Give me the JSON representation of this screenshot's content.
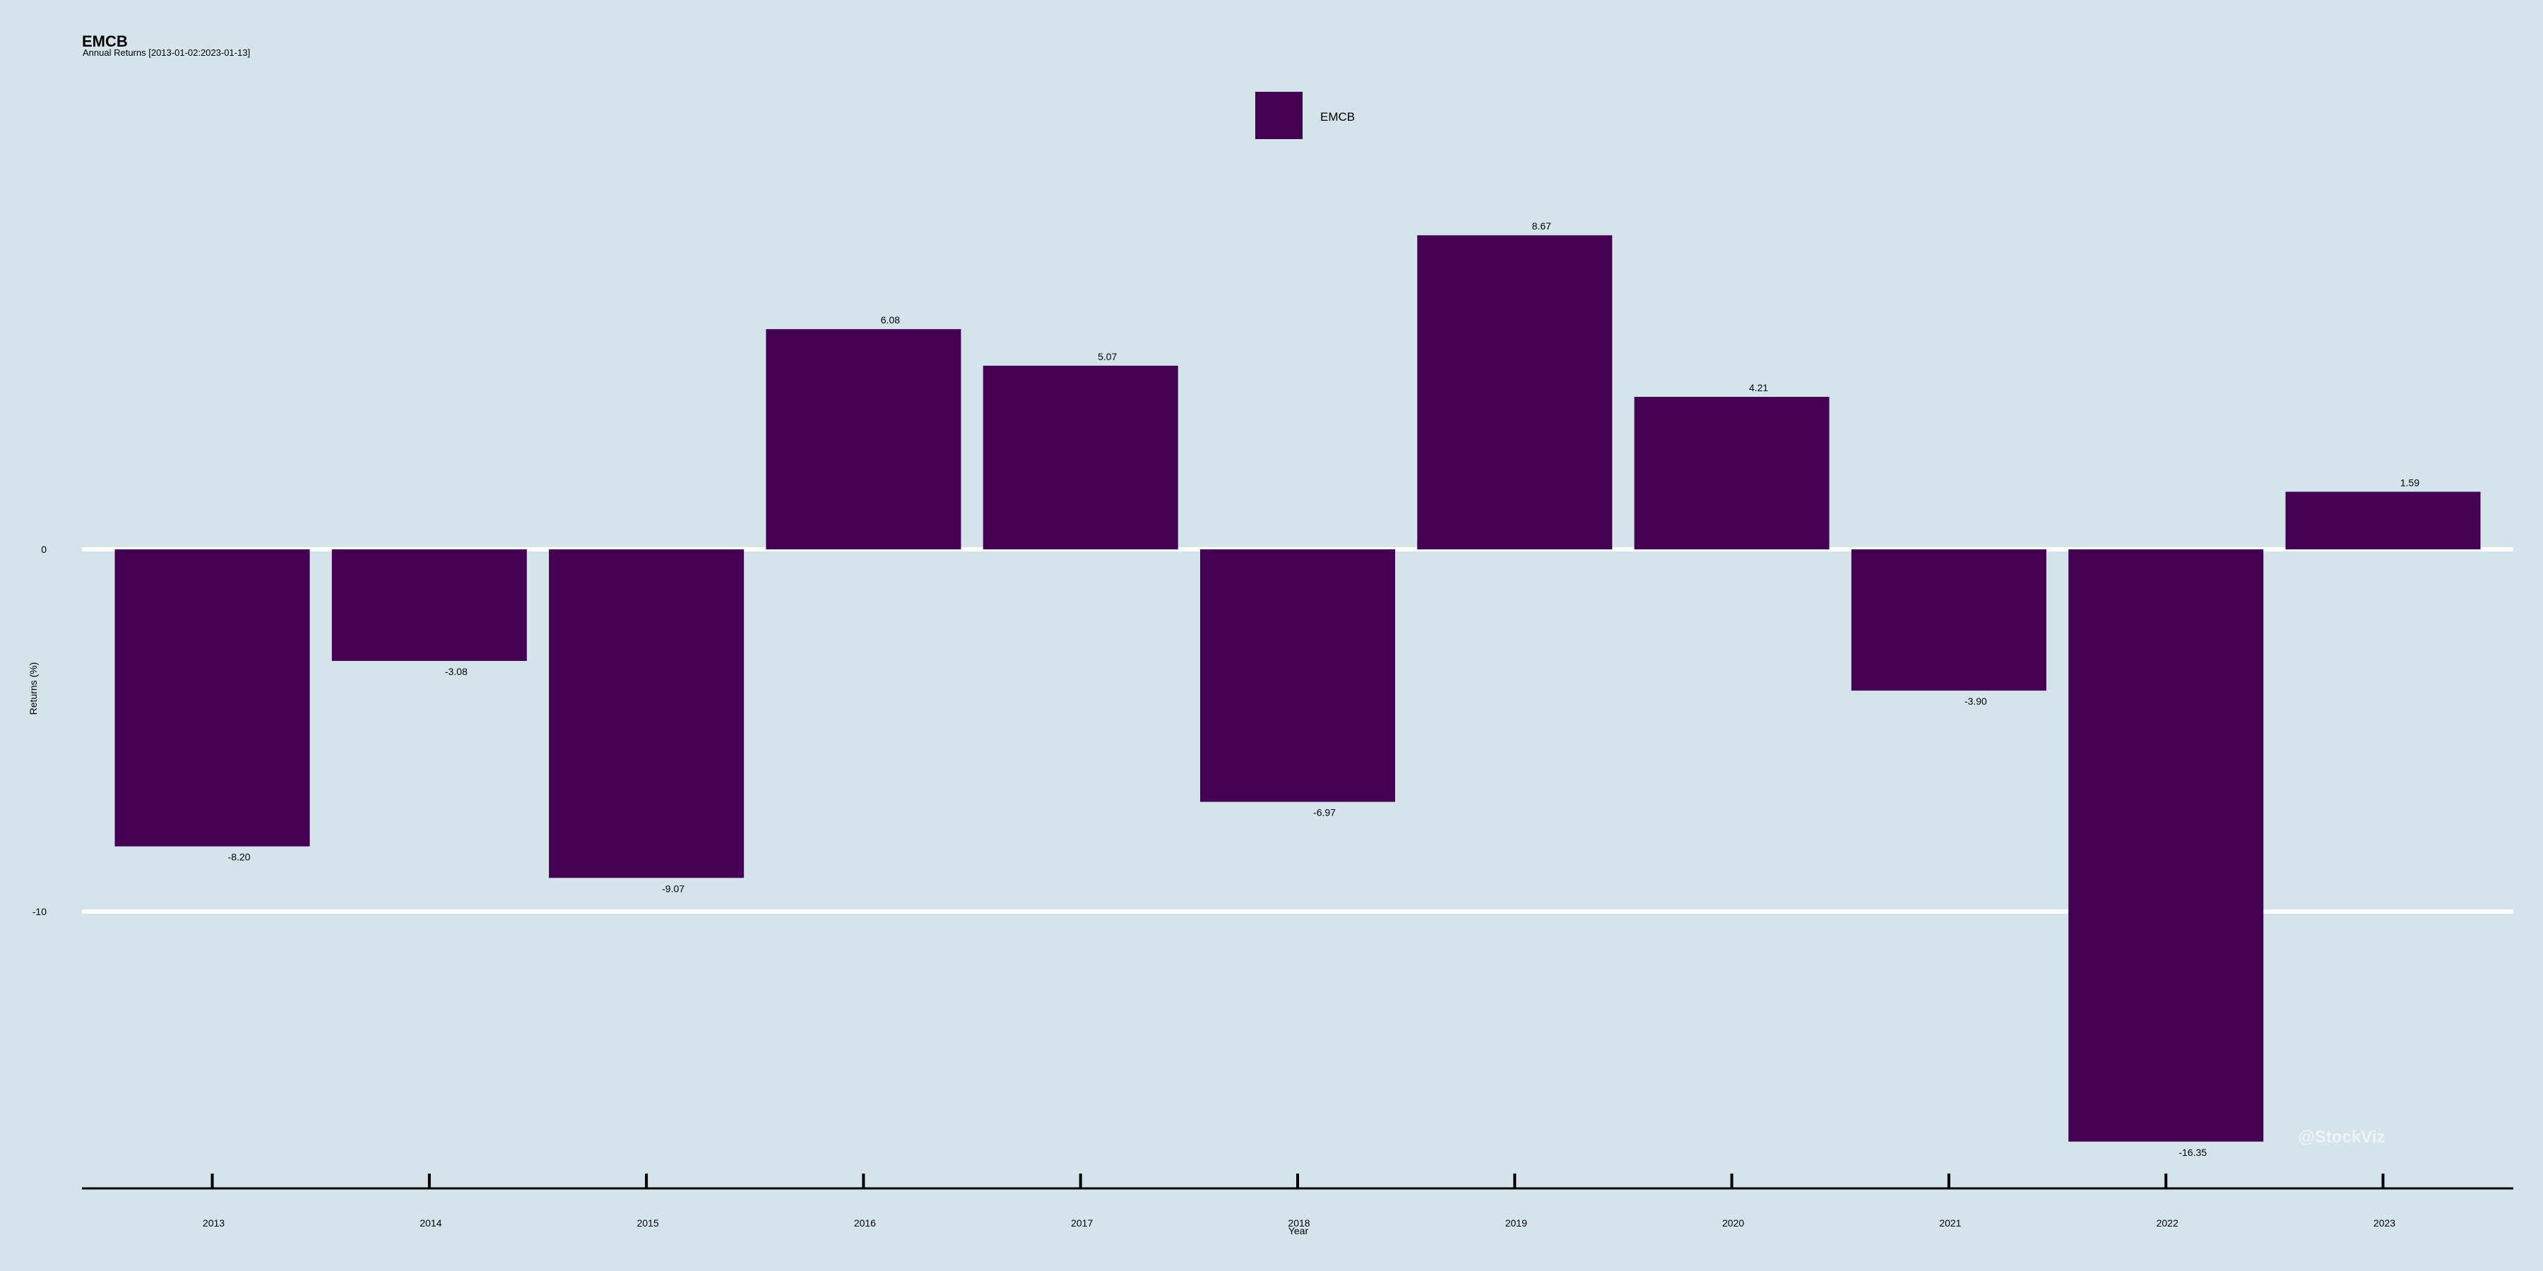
{
  "chart_data": {
    "type": "bar",
    "title": "EMCB",
    "subtitle": "Annual Returns [2013-01-02:2023-01-13]",
    "xlabel": "Year",
    "ylabel": "Returns (%)",
    "categories": [
      "2013",
      "2014",
      "2015",
      "2016",
      "2017",
      "2018",
      "2019",
      "2020",
      "2021",
      "2022",
      "2023"
    ],
    "series": [
      {
        "name": "EMCB",
        "values": [
          -8.2,
          -3.08,
          -9.07,
          6.08,
          5.07,
          -6.97,
          8.67,
          4.21,
          -3.9,
          -16.35,
          1.59
        ],
        "labels": [
          "-8.20",
          "-3.08",
          "-9.07",
          "6.08",
          "5.07",
          "-6.97",
          "8.67",
          "4.21",
          "-3.90",
          "-16.35",
          "1.59"
        ]
      }
    ],
    "y_ticks": [
      0,
      -10
    ],
    "ylim": [
      -17.6,
      12.6
    ],
    "grid": true,
    "legend": "top-center",
    "watermark": "@StockViz",
    "colors": {
      "bar": "#440154",
      "background": "#d5e4eb",
      "grid": "#ffffff",
      "text": "#000000",
      "watermark": "#eef4f7"
    }
  }
}
